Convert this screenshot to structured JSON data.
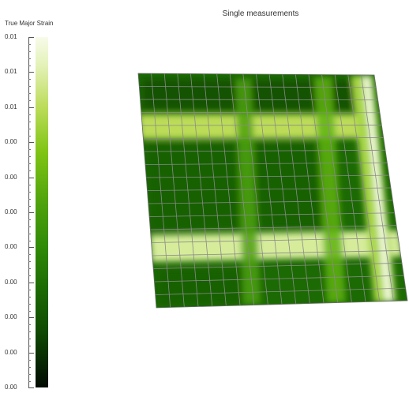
{
  "legend": {
    "title": "True Major Strain",
    "tick_labels": [
      "0.01",
      "0.01",
      "0.01",
      "0.00",
      "0.00",
      "0.00",
      "0.00",
      "0.00",
      "0.00",
      "0.00",
      "0.00"
    ]
  },
  "plot": {
    "title": "Single measurements"
  },
  "colors": {
    "bar_top": "#f7fbea",
    "bar_bottom": "#020a01",
    "field_dark": "#1c6a03",
    "field_light": "#e4f2b8",
    "grid_line": "#8a8a8a"
  }
}
